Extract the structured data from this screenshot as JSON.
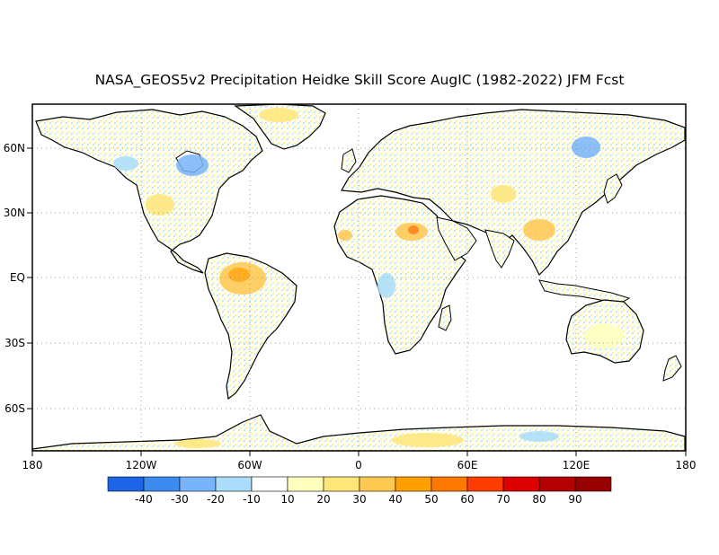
{
  "title": "NASA_GEOS5v2 Precipitation Heidke Skill Score AugIC (1982-2022) JFM Fcst",
  "x_tick_labels": [
    "180",
    "120W",
    "60W",
    "0",
    "60E",
    "120E",
    "180"
  ],
  "y_tick_labels": [
    "60N",
    "30N",
    "EQ",
    "30S",
    "60S"
  ],
  "colorbar": {
    "labels": [
      "-40",
      "-30",
      "-20",
      "-10",
      "10",
      "20",
      "30",
      "40",
      "50",
      "60",
      "70",
      "80",
      "90"
    ],
    "colors": [
      "#1e64e6",
      "#3c8cf0",
      "#78b4fa",
      "#aaddfa",
      "#ffffff",
      "#ffffbe",
      "#ffe678",
      "#ffc850",
      "#ffa000",
      "#ff7800",
      "#ff3c00",
      "#dc0000",
      "#b40000",
      "#960000"
    ]
  },
  "map": {
    "x_range": [
      -180,
      180
    ],
    "y_range": [
      -80,
      80
    ],
    "grid": "dotted",
    "land_texture_colors": [
      "#ffffbe",
      "#ffe678",
      "#ffc850",
      "#aaddfa",
      "#78b4fa"
    ],
    "coastline_color": "#000000"
  }
}
